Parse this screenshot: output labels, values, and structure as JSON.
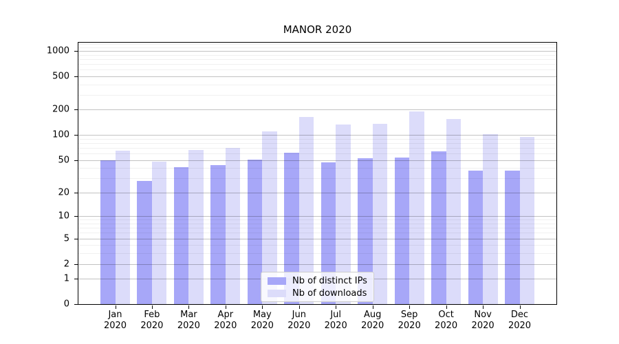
{
  "chart_data": {
    "type": "bar",
    "title": "MANOR 2020",
    "categories": [
      "Jan",
      "Feb",
      "Mar",
      "Apr",
      "May",
      "Jun",
      "Jul",
      "Aug",
      "Sep",
      "Oct",
      "Nov",
      "Dec"
    ],
    "year": "2020",
    "series": [
      {
        "name": "Nb of distinct IPs",
        "color": "#a7a7f8",
        "values": [
          50,
          28,
          41,
          43,
          51,
          61,
          47,
          52,
          54,
          63,
          37,
          37
        ]
      },
      {
        "name": "Nb of downloads",
        "color": "#dcdcfa",
        "values": [
          65,
          48,
          66,
          70,
          110,
          165,
          134,
          136,
          190,
          155,
          102,
          95
        ]
      }
    ],
    "xlabel": "",
    "ylabel": "",
    "yticks": [
      0,
      1,
      2,
      5,
      10,
      20,
      50,
      100,
      200,
      500,
      1000
    ],
    "minor_gridline_values": [
      3,
      4,
      6,
      7,
      8,
      9,
      30,
      40,
      60,
      70,
      80,
      90,
      300,
      400,
      600,
      700,
      800,
      900,
      1100,
      1200
    ],
    "scale": "log10(1+y)",
    "ylim": [
      0,
      1250
    ],
    "grid": "major+minor horizontal",
    "legend_position": "inside bottom-center"
  }
}
